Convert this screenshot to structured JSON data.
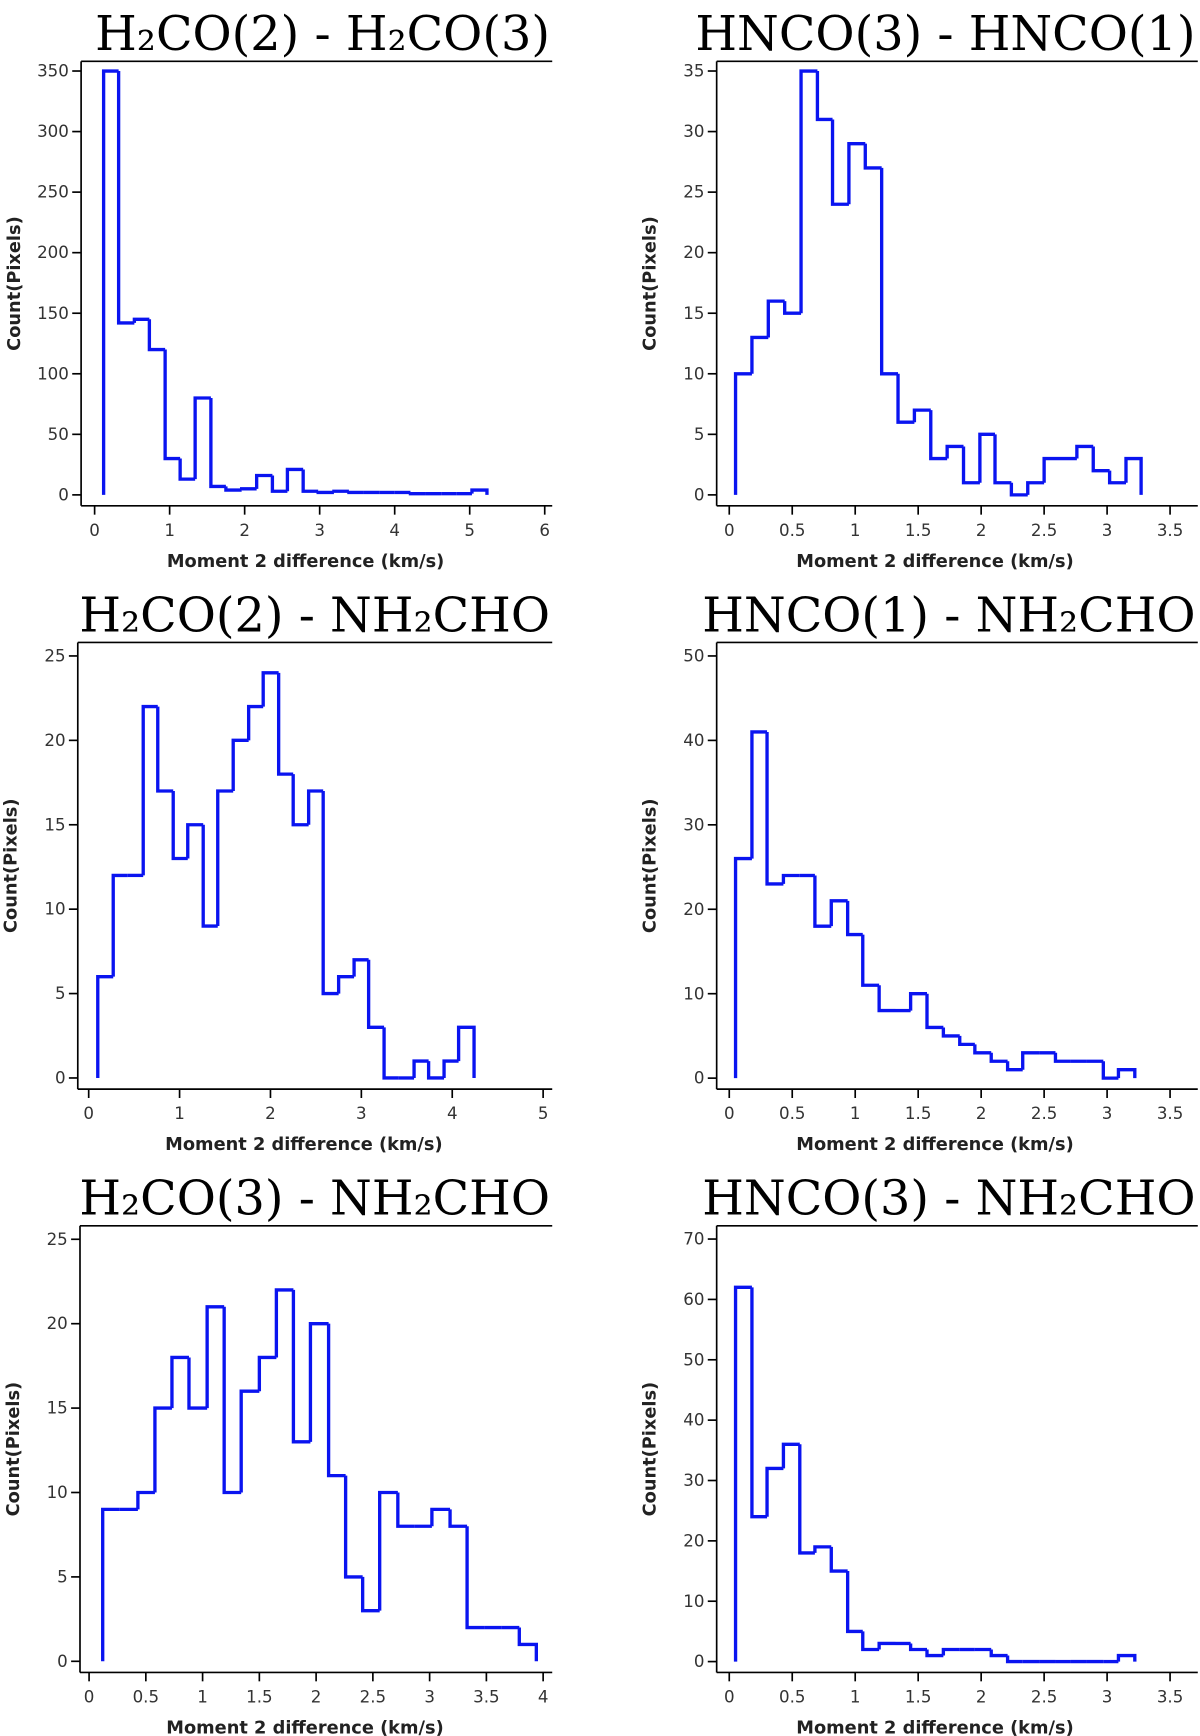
{
  "chart_data": [
    {
      "type": "histogram",
      "title": "H₂CO(2) - H₂CO(3)",
      "x_label": "Moment 2 difference (km/s)",
      "y_label": "Count(Pixels)",
      "color": "#0a14f0",
      "bins": [
        0.12,
        0.32,
        0.53,
        0.73,
        0.94,
        1.14,
        1.34,
        1.55,
        1.75,
        1.96,
        2.16,
        2.37,
        2.57,
        2.78,
        2.98,
        3.19,
        3.39,
        3.59,
        3.8,
        4.0,
        4.21,
        4.41,
        4.62,
        4.82,
        5.03,
        5.23
      ],
      "counts": [
        350,
        142,
        145,
        120,
        30,
        13,
        80,
        7,
        4,
        5,
        16,
        3,
        21,
        3,
        2,
        3,
        2,
        2,
        2,
        2,
        1,
        1,
        1,
        1,
        4
      ],
      "xlim": [
        -0.18,
        6.1
      ],
      "ylim": [
        -9,
        358
      ],
      "xticks": [
        0,
        1,
        2,
        3,
        4,
        5,
        6
      ],
      "yticks": [
        0,
        50,
        100,
        150,
        200,
        250,
        300,
        350
      ]
    },
    {
      "type": "histogram",
      "title": "HNCO(3) - HNCO(1)",
      "x_label": "Moment 2 difference (km/s)",
      "y_label": "Count(Pixels)",
      "color": "#0a14f0",
      "bins": [
        0.05,
        0.18,
        0.31,
        0.44,
        0.57,
        0.7,
        0.82,
        0.95,
        1.08,
        1.21,
        1.34,
        1.47,
        1.6,
        1.73,
        1.86,
        1.99,
        2.11,
        2.24,
        2.37,
        2.5,
        2.63,
        2.76,
        2.89,
        3.02,
        3.15,
        3.27
      ],
      "counts": [
        10,
        13,
        16,
        15,
        35,
        31,
        24,
        29,
        27,
        10,
        6,
        7,
        3,
        4,
        1,
        5,
        1,
        0,
        1,
        3,
        3,
        4,
        2,
        1,
        3
      ],
      "xlim": [
        -0.1,
        3.72
      ],
      "ylim": [
        -0.9,
        35.8
      ],
      "xticks": [
        0,
        0.5,
        1,
        1.5,
        2,
        2.5,
        3,
        3.5
      ],
      "yticks": [
        0,
        5,
        10,
        15,
        20,
        25,
        30,
        35
      ]
    },
    {
      "type": "histogram",
      "title": "H₂CO(2) - NH₂CHO",
      "x_label": "Moment 2 difference (km/s)",
      "y_label": "Count(Pixels)",
      "color": "#0a14f0",
      "bins": [
        0.1,
        0.27,
        0.43,
        0.6,
        0.76,
        0.93,
        1.09,
        1.26,
        1.42,
        1.59,
        1.76,
        1.92,
        2.09,
        2.25,
        2.42,
        2.58,
        2.75,
        2.92,
        3.08,
        3.25,
        3.41,
        3.58,
        3.74,
        3.91,
        4.07,
        4.24
      ],
      "counts": [
        6,
        12,
        12,
        22,
        17,
        13,
        15,
        9,
        17,
        20,
        22,
        24,
        18,
        15,
        17,
        5,
        6,
        7,
        3,
        0,
        0,
        1,
        0,
        1,
        3
      ],
      "xlim": [
        -0.12,
        5.1
      ],
      "ylim": [
        -0.66,
        25.8
      ],
      "xticks": [
        0,
        1,
        2,
        3,
        4,
        5
      ],
      "yticks": [
        0,
        5,
        10,
        15,
        20,
        25
      ]
    },
    {
      "type": "histogram",
      "title": "HNCO(1) - NH₂CHO",
      "x_label": "Moment 2 difference (km/s)",
      "y_label": "Count(Pixels)",
      "color": "#0a14f0",
      "bins": [
        0.05,
        0.18,
        0.3,
        0.43,
        0.56,
        0.68,
        0.81,
        0.94,
        1.06,
        1.19,
        1.32,
        1.44,
        1.57,
        1.7,
        1.83,
        1.95,
        2.08,
        2.21,
        2.33,
        2.46,
        2.59,
        2.71,
        2.84,
        2.97,
        3.09,
        3.22
      ],
      "counts": [
        26,
        41,
        23,
        24,
        24,
        18,
        21,
        17,
        11,
        8,
        8,
        10,
        6,
        5,
        4,
        3,
        2,
        1,
        3,
        3,
        2,
        2,
        2,
        0,
        1
      ],
      "xlim": [
        -0.1,
        3.72
      ],
      "ylim": [
        -1.3,
        51.6
      ],
      "xticks": [
        0,
        0.5,
        1,
        1.5,
        2,
        2.5,
        3,
        3.5
      ],
      "yticks": [
        0,
        10,
        20,
        30,
        40,
        50
      ]
    },
    {
      "type": "histogram",
      "title": "H₂CO(3) - NH₂CHO",
      "x_label": "Moment 2 difference (km/s)",
      "y_label": "Count(Pixels)",
      "color": "#0a14f0",
      "bins": [
        0.12,
        0.27,
        0.43,
        0.58,
        0.73,
        0.88,
        1.04,
        1.19,
        1.34,
        1.5,
        1.65,
        1.8,
        1.95,
        2.11,
        2.26,
        2.41,
        2.56,
        2.72,
        2.87,
        3.02,
        3.18,
        3.33,
        3.48,
        3.63,
        3.79,
        3.94
      ],
      "counts": [
        9,
        9,
        10,
        15,
        18,
        15,
        21,
        10,
        16,
        18,
        22,
        13,
        20,
        11,
        5,
        3,
        10,
        8,
        8,
        9,
        8,
        2,
        2,
        2,
        1
      ],
      "xlim": [
        -0.08,
        4.08
      ],
      "ylim": [
        -0.66,
        25.8
      ],
      "xticks": [
        0,
        0.5,
        1,
        1.5,
        2,
        2.5,
        3,
        3.5,
        4
      ],
      "yticks": [
        0,
        5,
        10,
        15,
        20,
        25
      ]
    },
    {
      "type": "histogram",
      "title": "HNCO(3) - NH₂CHO",
      "x_label": "Moment 2 difference (km/s)",
      "y_label": "Count(Pixels)",
      "color": "#0a14f0",
      "bins": [
        0.05,
        0.18,
        0.3,
        0.43,
        0.56,
        0.68,
        0.81,
        0.94,
        1.06,
        1.19,
        1.32,
        1.44,
        1.57,
        1.7,
        1.83,
        1.95,
        2.08,
        2.21,
        2.33,
        2.46,
        2.59,
        2.71,
        2.84,
        2.97,
        3.09,
        3.22
      ],
      "counts": [
        62,
        24,
        32,
        36,
        18,
        19,
        15,
        5,
        2,
        3,
        3,
        2,
        1,
        2,
        2,
        2,
        1,
        0,
        0,
        0,
        0,
        0,
        0,
        0,
        1
      ],
      "xlim": [
        -0.1,
        3.72
      ],
      "ylim": [
        -1.8,
        72.2
      ],
      "xticks": [
        0,
        0.5,
        1,
        1.5,
        2,
        2.5,
        3,
        3.5
      ],
      "yticks": [
        0,
        10,
        20,
        30,
        40,
        50,
        60,
        70
      ]
    }
  ]
}
